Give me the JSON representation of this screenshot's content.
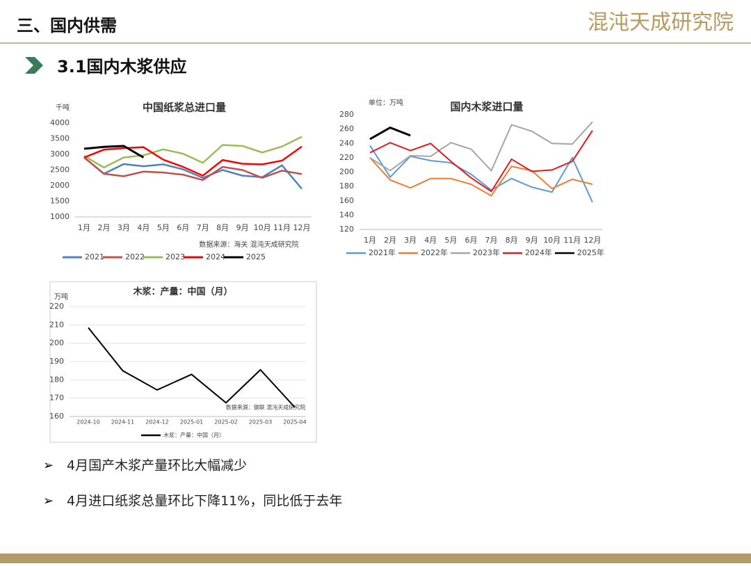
{
  "header": {
    "title": "三、国内供需",
    "logo": "混沌天成研究院"
  },
  "section": "3.1国内木浆供应",
  "bullets": [
    "4月国产木浆产量环比大幅减少",
    "4月进口纸浆总量环比下降11%，同比低于去年"
  ],
  "chart_data": [
    {
      "type": "line",
      "title": "中国纸浆总进口量",
      "unit": "千吨",
      "source": "数据来源：海关  混沌天成研究院",
      "categories": [
        "1月",
        "2月",
        "3月",
        "4月",
        "5月",
        "6月",
        "7月",
        "8月",
        "9月",
        "10月",
        "11月",
        "12月"
      ],
      "ylim": [
        1000,
        4000
      ],
      "yticks": [
        1000,
        1500,
        2000,
        2500,
        3000,
        3500,
        4000
      ],
      "grid": false,
      "series": [
        {
          "name": "2021",
          "color": "#4f81bd",
          "values": [
            2900,
            2380,
            2690,
            2620,
            2680,
            2520,
            2250,
            2500,
            2320,
            2270,
            2650,
            1900
          ]
        },
        {
          "name": "2022",
          "color": "#c0504d",
          "values": [
            2900,
            2380,
            2300,
            2450,
            2420,
            2350,
            2180,
            2600,
            2500,
            2250,
            2480,
            2370
          ]
        },
        {
          "name": "2023",
          "color": "#9bbb59",
          "values": [
            2950,
            2580,
            2900,
            2970,
            3160,
            3020,
            2730,
            3300,
            3270,
            3060,
            3250,
            3560
          ]
        },
        {
          "name": "2024",
          "color": "#ff0000",
          "values": [
            2900,
            3150,
            3200,
            3230,
            2830,
            2600,
            2320,
            2820,
            2700,
            2680,
            2800,
            3250
          ]
        },
        {
          "name": "2025",
          "color": "#000000",
          "values": [
            3180,
            3240,
            3270,
            2900,
            null,
            null,
            null,
            null,
            null,
            null,
            null,
            null
          ]
        }
      ]
    },
    {
      "type": "line",
      "title": "国内木浆进口量",
      "unit": "单位：万吨",
      "categories": [
        "1月",
        "2月",
        "3月",
        "4月",
        "5月",
        "6月",
        "7月",
        "8月",
        "9月",
        "10月",
        "11月",
        "12月"
      ],
      "ylim": [
        120,
        280
      ],
      "yticks": [
        120,
        140,
        160,
        180,
        200,
        220,
        240,
        260,
        280
      ],
      "grid": false,
      "series": [
        {
          "name": "2021年",
          "color": "#5b9bd5",
          "values": [
            237,
            193,
            222,
            216,
            213,
            197,
            175,
            191,
            179,
            172,
            220,
            158
          ]
        },
        {
          "name": "2022年",
          "color": "#ed7d31",
          "values": [
            220,
            189,
            178,
            191,
            191,
            183,
            167,
            208,
            202,
            177,
            190,
            183
          ]
        },
        {
          "name": "2023年",
          "color": "#a5a5a5",
          "values": [
            220,
            202,
            223,
            222,
            241,
            232,
            202,
            266,
            257,
            240,
            239,
            270
          ]
        },
        {
          "name": "2024年",
          "color": "#e31a1c",
          "values": [
            227,
            241,
            230,
            240,
            215,
            192,
            173,
            218,
            201,
            203,
            215,
            258
          ]
        },
        {
          "name": "2025年",
          "color": "#000000",
          "values": [
            246,
            262,
            251,
            null,
            null,
            null,
            null,
            null,
            null,
            null,
            null,
            null
          ]
        }
      ]
    },
    {
      "type": "line",
      "title": "木浆：产量：中国（月）",
      "unit": "万吨",
      "source": "数据来源：钢联  混沌天成研究院",
      "categories": [
        "2024-10",
        "2024-11",
        "2024-12",
        "2025-01",
        "2025-02",
        "2025-03",
        "2025-04"
      ],
      "ylim": [
        160,
        220
      ],
      "yticks": [
        160,
        170,
        180,
        190,
        200,
        210,
        220
      ],
      "grid": true,
      "series": [
        {
          "name": "木浆：产量：中国（月）",
          "color": "#000000",
          "values": [
            208.5,
            185,
            174.5,
            183,
            167.5,
            185.5,
            165
          ]
        }
      ]
    }
  ]
}
